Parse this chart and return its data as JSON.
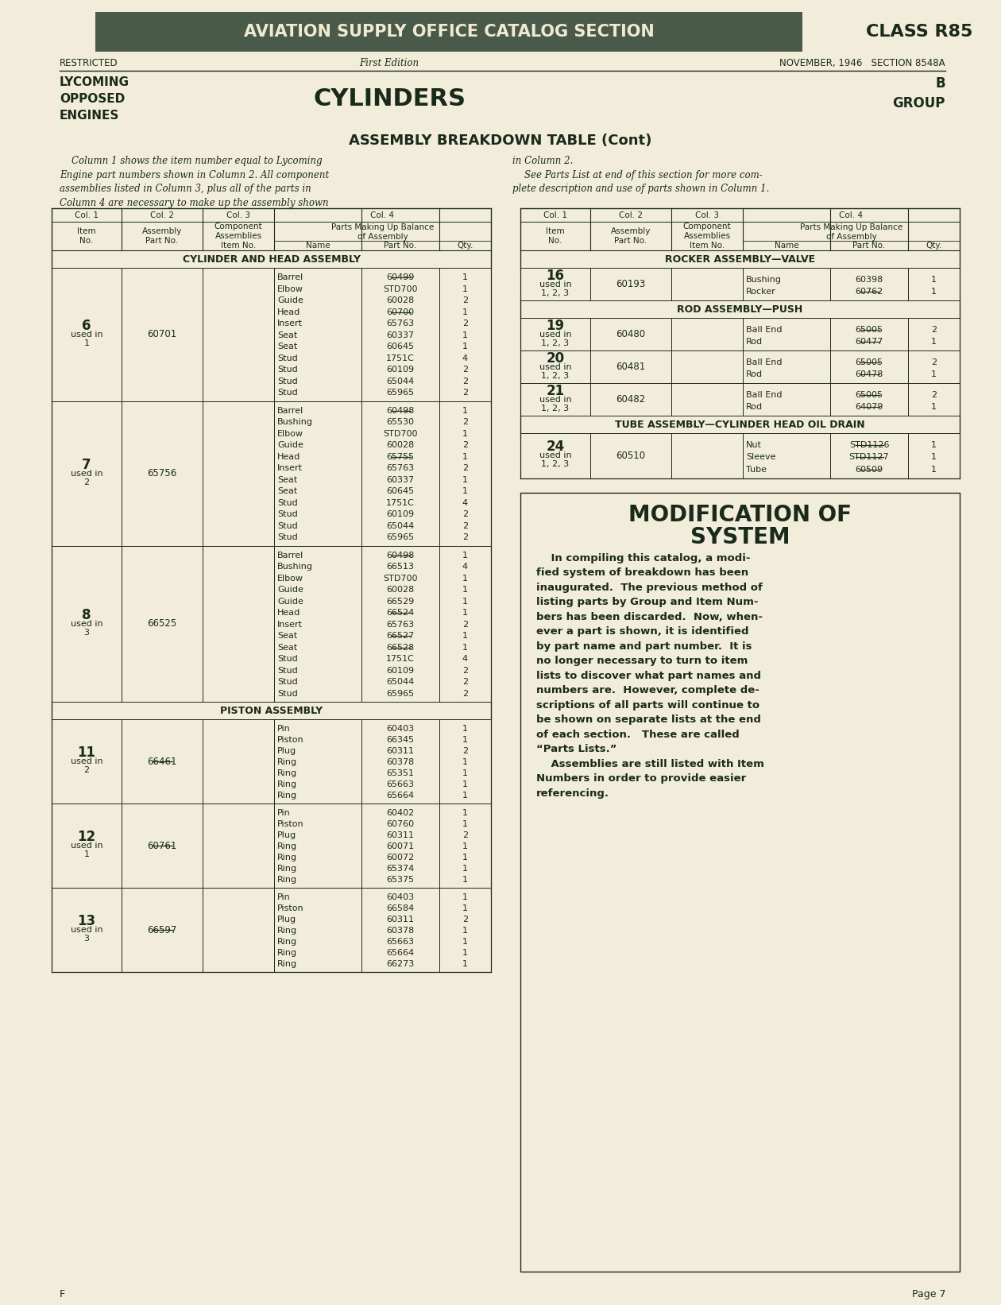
{
  "bg_color": "#f2edda",
  "header_bg": "#4a5a4a",
  "header_text_color": "#f0ead0",
  "dark_text": "#1a2a1a",
  "page_title_banner": "AVIATION SUPPLY OFFICE CATALOG SECTION",
  "class_label": "CLASS R85",
  "restricted": "RESTRICTED",
  "edition": "First Edition",
  "date_section": "NOVEMBER, 1946   SECTION 8548A",
  "lycoming_label": "LYCOMING\nOPPOSED\nENGINES",
  "section_title": "CYLINDERS",
  "group_label": "B\nGROUP",
  "table_title": "ASSEMBLY BREAKDOWN TABLE (Cont)",
  "intro_text_left": "    Column 1 shows the item number equal to Lycoming\nEngine part numbers shown in Column 2. All component\nassemblies listed in Column 3, plus all of the parts in\nColumn 4 are necessary to make up the assembly shown",
  "intro_text_right": "in Column 2.\n    See Parts List at end of this section for more com-\nplete description and use of parts shown in Column 1.",
  "section1_title": "CYLINDER AND HEAD ASSEMBLY",
  "left_table_data": [
    {
      "item": "6\nused in\n1",
      "assembly": "60701",
      "assembly_st": false,
      "parts": [
        [
          "Barrel",
          "60499",
          "1",
          true
        ],
        [
          "Elbow",
          "STD700",
          "1",
          false
        ],
        [
          "Guide",
          "60028",
          "2",
          false
        ],
        [
          "Head",
          "60700",
          "1",
          true
        ],
        [
          "Insert",
          "65763",
          "2",
          false
        ],
        [
          "Seat",
          "60337",
          "1",
          false
        ],
        [
          "Seat",
          "60645",
          "1",
          false
        ],
        [
          "Stud",
          "1751C",
          "4",
          false
        ],
        [
          "Stud",
          "60109",
          "2",
          false
        ],
        [
          "Stud",
          "65044",
          "2",
          false
        ],
        [
          "Stud",
          "65965",
          "2",
          false
        ]
      ]
    },
    {
      "item": "7\nused in\n2",
      "assembly": "65756",
      "assembly_st": false,
      "parts": [
        [
          "Barrel",
          "60498",
          "1",
          true
        ],
        [
          "Bushing",
          "65530",
          "2",
          false
        ],
        [
          "Elbow",
          "STD700",
          "1",
          false
        ],
        [
          "Guide",
          "60028",
          "2",
          false
        ],
        [
          "Head",
          "65755",
          "1",
          true
        ],
        [
          "Insert",
          "65763",
          "2",
          false
        ],
        [
          "Seat",
          "60337",
          "1",
          false
        ],
        [
          "Seat",
          "60645",
          "1",
          false
        ],
        [
          "Stud",
          "1751C",
          "4",
          false
        ],
        [
          "Stud",
          "60109",
          "2",
          false
        ],
        [
          "Stud",
          "65044",
          "2",
          false
        ],
        [
          "Stud",
          "65965",
          "2",
          false
        ]
      ]
    },
    {
      "item": "8\nused in\n3",
      "assembly": "66525",
      "assembly_st": false,
      "parts": [
        [
          "Barrel",
          "60498",
          "1",
          true
        ],
        [
          "Bushing",
          "66513",
          "4",
          false
        ],
        [
          "Elbow",
          "STD700",
          "1",
          false
        ],
        [
          "Guide",
          "60028",
          "1",
          false
        ],
        [
          "Guide",
          "66529",
          "1",
          false
        ],
        [
          "Head",
          "66524",
          "1",
          true
        ],
        [
          "Insert",
          "65763",
          "2",
          false
        ],
        [
          "Seat",
          "66527",
          "1",
          true
        ],
        [
          "Seat",
          "66528",
          "1",
          true
        ],
        [
          "Stud",
          "1751C",
          "4",
          false
        ],
        [
          "Stud",
          "60109",
          "2",
          false
        ],
        [
          "Stud",
          "65044",
          "2",
          false
        ],
        [
          "Stud",
          "65965",
          "2",
          false
        ]
      ]
    }
  ],
  "section2_title": "PISTON ASSEMBLY",
  "piston_data": [
    {
      "item": "11\nused in\n2",
      "assembly": "66461",
      "assembly_st": true,
      "parts": [
        [
          "Pin",
          "60403",
          "1",
          false
        ],
        [
          "Piston",
          "66345",
          "1",
          false
        ],
        [
          "Plug",
          "60311",
          "2",
          false
        ],
        [
          "Ring",
          "60378",
          "1",
          false
        ],
        [
          "Ring",
          "65351",
          "1",
          false
        ],
        [
          "Ring",
          "65663",
          "1",
          false
        ],
        [
          "Ring",
          "65664",
          "1",
          false
        ]
      ]
    },
    {
      "item": "12\nused in\n1",
      "assembly": "60761",
      "assembly_st": true,
      "parts": [
        [
          "Pin",
          "60402",
          "1",
          false
        ],
        [
          "Piston",
          "60760",
          "1",
          false
        ],
        [
          "Plug",
          "60311",
          "2",
          false
        ],
        [
          "Ring",
          "60071",
          "1",
          false
        ],
        [
          "Ring",
          "60072",
          "1",
          false
        ],
        [
          "Ring",
          "65374",
          "1",
          false
        ],
        [
          "Ring",
          "65375",
          "1",
          false
        ]
      ]
    },
    {
      "item": "13\nused in\n3",
      "assembly": "66597",
      "assembly_st": true,
      "parts": [
        [
          "Pin",
          "60403",
          "1",
          false
        ],
        [
          "Piston",
          "66584",
          "1",
          false
        ],
        [
          "Plug",
          "60311",
          "2",
          false
        ],
        [
          "Ring",
          "60378",
          "1",
          false
        ],
        [
          "Ring",
          "65663",
          "1",
          false
        ],
        [
          "Ring",
          "65664",
          "1",
          false
        ],
        [
          "Ring",
          "66273",
          "1",
          false
        ]
      ]
    }
  ],
  "right_section1_title": "ROCKER ASSEMBLY—VALVE",
  "rocker_data": [
    {
      "item": "16\nused in\n1, 2, 3",
      "assembly": "60193",
      "parts": [
        [
          "Bushing",
          "60398",
          "1",
          false
        ],
        [
          "Rocker",
          "60762",
          "1",
          true
        ]
      ]
    }
  ],
  "right_section2_title": "ROD ASSEMBLY—PUSH",
  "rod_data": [
    {
      "item": "19\nused in\n1, 2, 3",
      "assembly": "60480",
      "parts": [
        [
          "Ball End",
          "65005",
          "2",
          true
        ],
        [
          "Rod",
          "60477",
          "1",
          true
        ]
      ]
    },
    {
      "item": "20\nused in\n1, 2, 3",
      "assembly": "60481",
      "parts": [
        [
          "Ball End",
          "65005",
          "2",
          true
        ],
        [
          "Rod",
          "60478",
          "1",
          true
        ]
      ]
    },
    {
      "item": "21\nused in\n1, 2, 3",
      "assembly": "60482",
      "parts": [
        [
          "Ball End",
          "65005",
          "2",
          true
        ],
        [
          "Rod",
          "64079",
          "1",
          true
        ]
      ]
    }
  ],
  "right_section3_title": "TUBE ASSEMBLY—CYLINDER HEAD OIL DRAIN",
  "tube_data": [
    {
      "item": "24\nused in\n1, 2, 3",
      "assembly": "60510",
      "parts": [
        [
          "Nut",
          "STD1126",
          "1",
          true
        ],
        [
          "Sleeve",
          "STD1127",
          "1",
          true
        ],
        [
          "Tube",
          "60509",
          "1",
          true
        ]
      ]
    }
  ],
  "mod_title1": "MODIFICATION OF",
  "mod_title2": "SYSTEM",
  "mod_body": [
    "    In compiling this catalog, a modi-",
    "fied system of breakdown has been",
    "inaugurated.  The previous method of",
    "listing parts by Group and Item Num-",
    "bers has been discarded.  Now, when-",
    "ever a part is shown, it is identified",
    "by part name and part number.  It is",
    "no longer necessary to turn to item",
    "lists to discover what part names and",
    "numbers are.  However, complete de-",
    "scriptions of all parts will continue to",
    "be shown on separate lists at the end",
    "of each section.   These are called",
    "“Parts Lists.”",
    "    Assemblies are still listed with Item",
    "Numbers in order to provide easier",
    "referencing."
  ],
  "page_footer": "Page 7",
  "footer_left": "F"
}
